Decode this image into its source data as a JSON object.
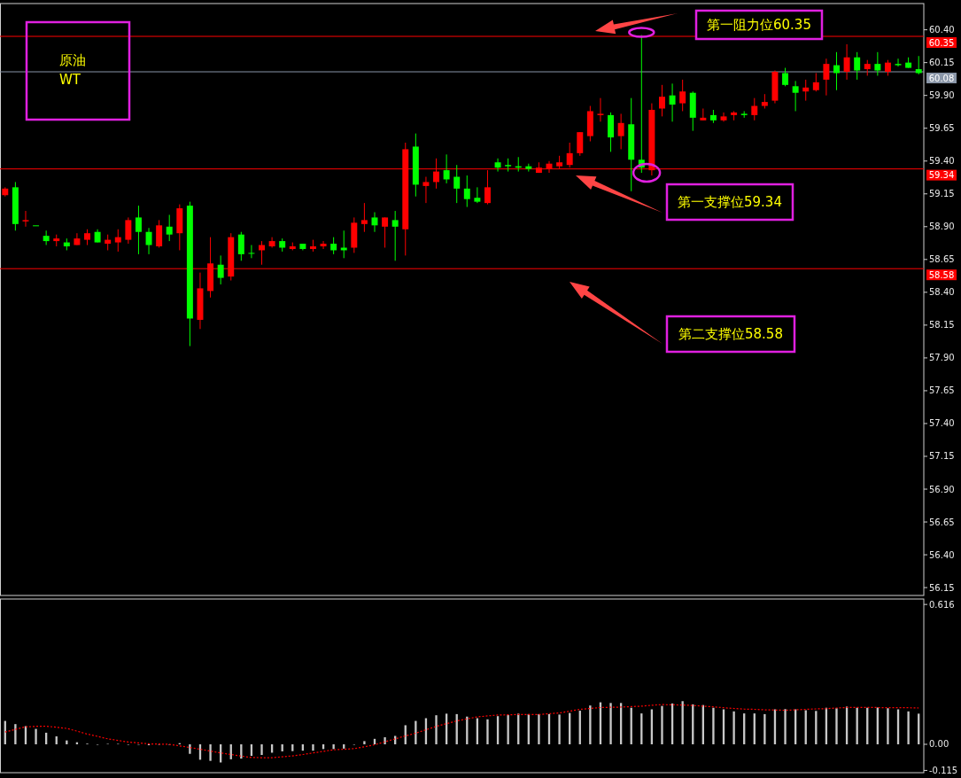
{
  "chart_data": [
    {
      "type": "candlestick",
      "title": "原油",
      "subtitle": "WT",
      "categories": [
        null,
        null,
        null,
        null,
        null,
        null,
        null,
        null,
        null,
        null,
        null,
        null,
        null,
        null,
        null,
        null,
        null,
        null,
        null,
        null,
        null,
        null,
        null,
        null,
        null,
        null,
        null,
        null,
        null,
        null,
        null,
        null,
        null,
        null,
        null,
        null,
        null,
        null,
        null,
        null,
        null,
        null,
        null,
        null,
        null,
        null,
        null,
        null,
        null,
        null,
        null,
        null,
        null,
        null,
        null,
        null,
        null,
        null,
        null,
        null,
        null,
        null,
        null,
        null,
        null,
        null,
        null,
        null,
        null,
        null,
        null,
        null,
        null,
        null,
        null,
        null,
        null,
        null,
        null,
        null,
        null,
        null,
        null,
        null,
        null,
        null,
        null,
        null,
        null,
        null
      ],
      "ohlc": [
        [
          59.14,
          59.2,
          59.13,
          59.19
        ],
        [
          59.2,
          59.24,
          58.87,
          58.92
        ],
        [
          58.94,
          59.02,
          58.9,
          58.95
        ],
        [
          58.91,
          58.91,
          58.91,
          58.91
        ],
        [
          58.83,
          58.87,
          58.76,
          58.79
        ],
        [
          58.79,
          58.84,
          58.75,
          58.81
        ],
        [
          58.78,
          58.81,
          58.72,
          58.75
        ],
        [
          58.76,
          58.85,
          58.76,
          58.81
        ],
        [
          58.8,
          58.88,
          58.76,
          58.85
        ],
        [
          58.86,
          58.88,
          58.78,
          58.78
        ],
        [
          58.77,
          58.84,
          58.72,
          58.8
        ],
        [
          58.78,
          58.88,
          58.71,
          58.82
        ],
        [
          58.8,
          58.97,
          58.77,
          58.95
        ],
        [
          58.97,
          59.06,
          58.69,
          58.86
        ],
        [
          58.86,
          58.89,
          58.69,
          58.76
        ],
        [
          58.75,
          58.95,
          58.74,
          58.91
        ],
        [
          58.9,
          58.99,
          58.79,
          58.84
        ],
        [
          58.85,
          59.07,
          58.72,
          59.04
        ],
        [
          59.06,
          59.09,
          57.99,
          58.2
        ],
        [
          58.19,
          58.55,
          58.12,
          58.43
        ],
        [
          58.41,
          58.82,
          58.36,
          58.62
        ],
        [
          58.61,
          58.68,
          58.46,
          58.51
        ],
        [
          58.52,
          58.85,
          58.49,
          58.82
        ],
        [
          58.84,
          58.86,
          58.64,
          58.69
        ],
        [
          58.7,
          58.76,
          58.66,
          58.7
        ],
        [
          58.72,
          58.79,
          58.61,
          58.76
        ],
        [
          58.75,
          58.82,
          58.74,
          58.79
        ],
        [
          58.79,
          58.81,
          58.71,
          58.74
        ],
        [
          58.73,
          58.78,
          58.72,
          58.75
        ],
        [
          58.77,
          58.77,
          58.72,
          58.73
        ],
        [
          58.73,
          58.8,
          58.71,
          58.75
        ],
        [
          58.75,
          58.79,
          58.73,
          58.77
        ],
        [
          58.77,
          58.82,
          58.69,
          58.72
        ],
        [
          58.74,
          58.87,
          58.66,
          58.72
        ],
        [
          58.74,
          58.97,
          58.7,
          58.93
        ],
        [
          58.92,
          59.08,
          58.86,
          58.95
        ],
        [
          58.97,
          59.01,
          58.86,
          58.91
        ],
        [
          58.9,
          58.97,
          58.74,
          58.97
        ],
        [
          58.95,
          59.02,
          58.64,
          58.9
        ],
        [
          58.88,
          59.54,
          58.68,
          59.49
        ],
        [
          59.51,
          59.61,
          59.13,
          59.22
        ],
        [
          59.21,
          59.28,
          59.08,
          59.24
        ],
        [
          59.24,
          59.42,
          59.19,
          59.32
        ],
        [
          59.33,
          59.45,
          59.23,
          59.26
        ],
        [
          59.28,
          59.37,
          59.08,
          59.19
        ],
        [
          59.19,
          59.29,
          59.05,
          59.11
        ],
        [
          59.12,
          59.2,
          59.08,
          59.09
        ],
        [
          59.08,
          59.33,
          59.07,
          59.2
        ],
        [
          59.39,
          59.42,
          59.32,
          59.35
        ],
        [
          59.37,
          59.42,
          59.32,
          59.36
        ],
        [
          59.36,
          59.43,
          59.32,
          59.35
        ],
        [
          59.36,
          59.38,
          59.32,
          59.34
        ],
        [
          59.31,
          59.39,
          59.31,
          59.35
        ],
        [
          59.34,
          59.4,
          59.31,
          59.38
        ],
        [
          59.36,
          59.44,
          59.34,
          59.39
        ],
        [
          59.37,
          59.54,
          59.35,
          59.46
        ],
        [
          59.46,
          59.62,
          59.44,
          59.62
        ],
        [
          59.59,
          59.82,
          59.55,
          59.78
        ],
        [
          59.75,
          59.88,
          59.7,
          59.76
        ],
        [
          59.75,
          59.77,
          59.47,
          59.58
        ],
        [
          59.59,
          59.76,
          59.49,
          59.69
        ],
        [
          59.68,
          59.88,
          59.17,
          59.41
        ],
        [
          59.41,
          60.36,
          59.31,
          59.35
        ],
        [
          59.33,
          59.84,
          59.29,
          59.79
        ],
        [
          59.8,
          59.98,
          59.74,
          59.89
        ],
        [
          59.9,
          59.99,
          59.7,
          59.83
        ],
        [
          59.84,
          60.02,
          59.78,
          59.93
        ],
        [
          59.92,
          59.93,
          59.63,
          59.73
        ],
        [
          59.71,
          59.8,
          59.71,
          59.73
        ],
        [
          59.75,
          59.79,
          59.69,
          59.71
        ],
        [
          59.71,
          59.77,
          59.7,
          59.74
        ],
        [
          59.75,
          59.78,
          59.71,
          59.77
        ],
        [
          59.76,
          59.78,
          59.73,
          59.75
        ],
        [
          59.75,
          59.88,
          59.71,
          59.82
        ],
        [
          59.82,
          59.91,
          59.8,
          59.85
        ],
        [
          59.86,
          60.09,
          59.84,
          60.08
        ],
        [
          60.07,
          60.11,
          59.97,
          59.98
        ],
        [
          59.97,
          60.01,
          59.78,
          59.92
        ],
        [
          59.93,
          60.02,
          59.86,
          59.96
        ],
        [
          59.94,
          60.07,
          59.93,
          60.0
        ],
        [
          60.02,
          60.18,
          59.9,
          60.14
        ],
        [
          60.13,
          60.23,
          59.94,
          60.07
        ],
        [
          60.08,
          60.29,
          60.02,
          60.19
        ],
        [
          60.19,
          60.23,
          60.02,
          60.09
        ],
        [
          60.1,
          60.17,
          60.05,
          60.14
        ],
        [
          60.14,
          60.23,
          60.05,
          60.09
        ],
        [
          60.08,
          60.17,
          60.05,
          60.15
        ],
        [
          60.14,
          60.18,
          60.12,
          60.13
        ],
        [
          60.15,
          60.19,
          60.11,
          60.11
        ],
        [
          60.1,
          60.2,
          60.06,
          60.07
        ]
      ],
      "colors": [
        "#ff0000",
        "#00ff00",
        "#ff0000",
        "#00ff00",
        "#00ff00",
        "#ff0000",
        "#00ff00",
        "#ff0000",
        "#ff0000",
        "#00ff00",
        "#ff0000",
        "#ff0000",
        "#ff0000",
        "#00ff00",
        "#00ff00",
        "#ff0000",
        "#00ff00",
        "#ff0000",
        "#00ff00",
        "#ff0000",
        "#ff0000",
        "#00ff00",
        "#ff0000",
        "#00ff00",
        "#00ff00",
        "#ff0000",
        "#ff0000",
        "#00ff00",
        "#ff0000",
        "#00ff00",
        "#ff0000",
        "#ff0000",
        "#00ff00",
        "#00ff00",
        "#ff0000",
        "#ff0000",
        "#00ff00",
        "#ff0000",
        "#00ff00",
        "#ff0000",
        "#00ff00",
        "#ff0000",
        "#ff0000",
        "#00ff00",
        "#00ff00",
        "#00ff00",
        "#00ff00",
        "#ff0000",
        "#00ff00",
        "#00ff00",
        "#00ff00",
        "#00ff00",
        "#ff0000",
        "#ff0000",
        "#ff0000",
        "#ff0000",
        "#ff0000",
        "#ff0000",
        "#ff0000",
        "#00ff00",
        "#ff0000",
        "#00ff00",
        "#00ff00",
        "#ff0000",
        "#ff0000",
        "#00ff00",
        "#ff0000",
        "#00ff00",
        "#ff0000",
        "#00ff00",
        "#ff0000",
        "#ff0000",
        "#00ff00",
        "#ff0000",
        "#ff0000",
        "#ff0000",
        "#00ff00",
        "#00ff00",
        "#ff0000",
        "#ff0000",
        "#ff0000",
        "#00ff00",
        "#ff0000",
        "#00ff00",
        "#ff0000",
        "#00ff00",
        "#ff0000",
        "#00ff00",
        "#00ff00",
        "#00ff00"
      ],
      "ylim": [
        56.09,
        60.6
      ],
      "yticks": [
        {
          "value": 60.4,
          "label": "60.40"
        },
        {
          "value": 60.15,
          "label": "60.15"
        },
        {
          "value": 59.9,
          "label": "59.90"
        },
        {
          "value": 59.65,
          "label": "59.65"
        },
        {
          "value": 59.4,
          "label": "59.40"
        },
        {
          "value": 59.15,
          "label": "59.15"
        },
        {
          "value": 58.9,
          "label": "58.90"
        },
        {
          "value": 58.65,
          "label": "58.65"
        },
        {
          "value": 58.4,
          "label": "58.40"
        },
        {
          "value": 58.15,
          "label": "58.15"
        },
        {
          "value": 57.9,
          "label": "57.90"
        },
        {
          "value": 57.65,
          "label": "57.65"
        },
        {
          "value": 57.4,
          "label": "57.40"
        },
        {
          "value": 57.15,
          "label": "57.15"
        },
        {
          "value": 56.9,
          "label": "56.90"
        },
        {
          "value": 56.65,
          "label": "56.65"
        },
        {
          "value": 56.4,
          "label": "56.40"
        },
        {
          "value": 56.15,
          "label": "56.15"
        }
      ],
      "ref_lines": [
        {
          "axis": "y",
          "value": 60.35,
          "label": "60.35",
          "color": "#ff0000"
        },
        {
          "axis": "y",
          "value": 60.08,
          "label": "60.08",
          "color": "#8a96a8"
        },
        {
          "axis": "y",
          "value": 59.34,
          "label": "59.34",
          "color": "#ff0000"
        },
        {
          "axis": "y",
          "value": 58.58,
          "label": "58.58",
          "color": "#ff0000"
        }
      ],
      "annotations": [
        "第一阻力位60.35",
        "第一支撑位59.34",
        "第二支撑位58.58"
      ]
    },
    {
      "type": "bar",
      "categories": [
        null,
        null,
        null,
        null,
        null,
        null,
        null,
        null,
        null,
        null,
        null,
        null,
        null,
        null,
        null,
        null,
        null,
        null,
        null,
        null,
        null,
        null,
        null,
        null,
        null,
        null,
        null,
        null,
        null,
        null,
        null,
        null,
        null,
        null,
        null,
        null,
        null,
        null,
        null,
        null,
        null,
        null,
        null,
        null,
        null,
        null,
        null,
        null,
        null,
        null,
        null,
        null,
        null,
        null,
        null,
        null,
        null,
        null,
        null,
        null,
        null,
        null,
        null,
        null,
        null,
        null,
        null,
        null,
        null,
        null,
        null,
        null,
        null,
        null,
        null,
        null,
        null,
        null,
        null,
        null,
        null,
        null,
        null,
        null,
        null,
        null,
        null,
        null,
        null,
        null
      ],
      "series": [
        {
          "type": "bar",
          "color": "#c8c8c8",
          "values": [
            0.103,
            0.089,
            0.08,
            0.068,
            0.051,
            0.035,
            0.017,
            0.009,
            0.003,
            0,
            0.002,
            0.002,
            0,
            0,
            -0.004,
            0,
            0,
            0.005,
            -0.042,
            -0.068,
            -0.073,
            -0.08,
            -0.066,
            -0.063,
            -0.051,
            -0.047,
            -0.037,
            -0.031,
            -0.03,
            -0.028,
            -0.028,
            -0.021,
            -0.021,
            -0.019,
            0,
            0.014,
            0.024,
            0.031,
            0.037,
            0.084,
            0.103,
            0.115,
            0.128,
            0.135,
            0.133,
            0.122,
            0.115,
            0.11,
            0.124,
            0.129,
            0.135,
            0.133,
            0.133,
            0.133,
            0.131,
            0.138,
            0.148,
            0.171,
            0.185,
            0.182,
            0.182,
            0.161,
            0.136,
            0.154,
            0.169,
            0.18,
            0.19,
            0.176,
            0.173,
            0.161,
            0.154,
            0.145,
            0.136,
            0.136,
            0.133,
            0.154,
            0.155,
            0.154,
            0.15,
            0.147,
            0.161,
            0.159,
            0.166,
            0.161,
            0.161,
            0.162,
            0.159,
            0.154,
            0.145,
            0.135
          ]
        },
        {
          "type": "line",
          "color": "#ff0000",
          "line_style": "dotted",
          "values": [
            0.054,
            0.066,
            0.077,
            0.079,
            0.08,
            0.075,
            0.07,
            0.058,
            0.045,
            0.035,
            0.024,
            0.017,
            0.01,
            0.006,
            0.002,
            0.001,
            0.0,
            -0.007,
            -0.014,
            -0.022,
            -0.03,
            -0.038,
            -0.045,
            -0.052,
            -0.058,
            -0.059,
            -0.059,
            -0.055,
            -0.051,
            -0.045,
            -0.038,
            -0.031,
            -0.024,
            -0.022,
            -0.019,
            -0.011,
            -0.002,
            0.011,
            0.024,
            0.037,
            0.049,
            0.064,
            0.079,
            0.091,
            0.103,
            0.112,
            0.121,
            0.125,
            0.129,
            0.13,
            0.131,
            0.131,
            0.131,
            0.135,
            0.138,
            0.146,
            0.154,
            0.158,
            0.162,
            0.163,
            0.164,
            0.166,
            0.168,
            0.172,
            0.175,
            0.174,
            0.173,
            0.171,
            0.168,
            0.165,
            0.161,
            0.158,
            0.155,
            0.154,
            0.152,
            0.151,
            0.15,
            0.152,
            0.154,
            0.156,
            0.157,
            0.16,
            0.162,
            0.162,
            0.162,
            0.162,
            0.161,
            0.161,
            0.161,
            0.16
          ]
        }
      ],
      "ylim": [
        -0.125,
        0.64
      ],
      "yticks": [
        {
          "value": 0.616,
          "label": "0.616"
        },
        {
          "value": 0,
          "label": "0.00"
        },
        {
          "value": -0.115,
          "label": "-0.115"
        }
      ]
    }
  ]
}
